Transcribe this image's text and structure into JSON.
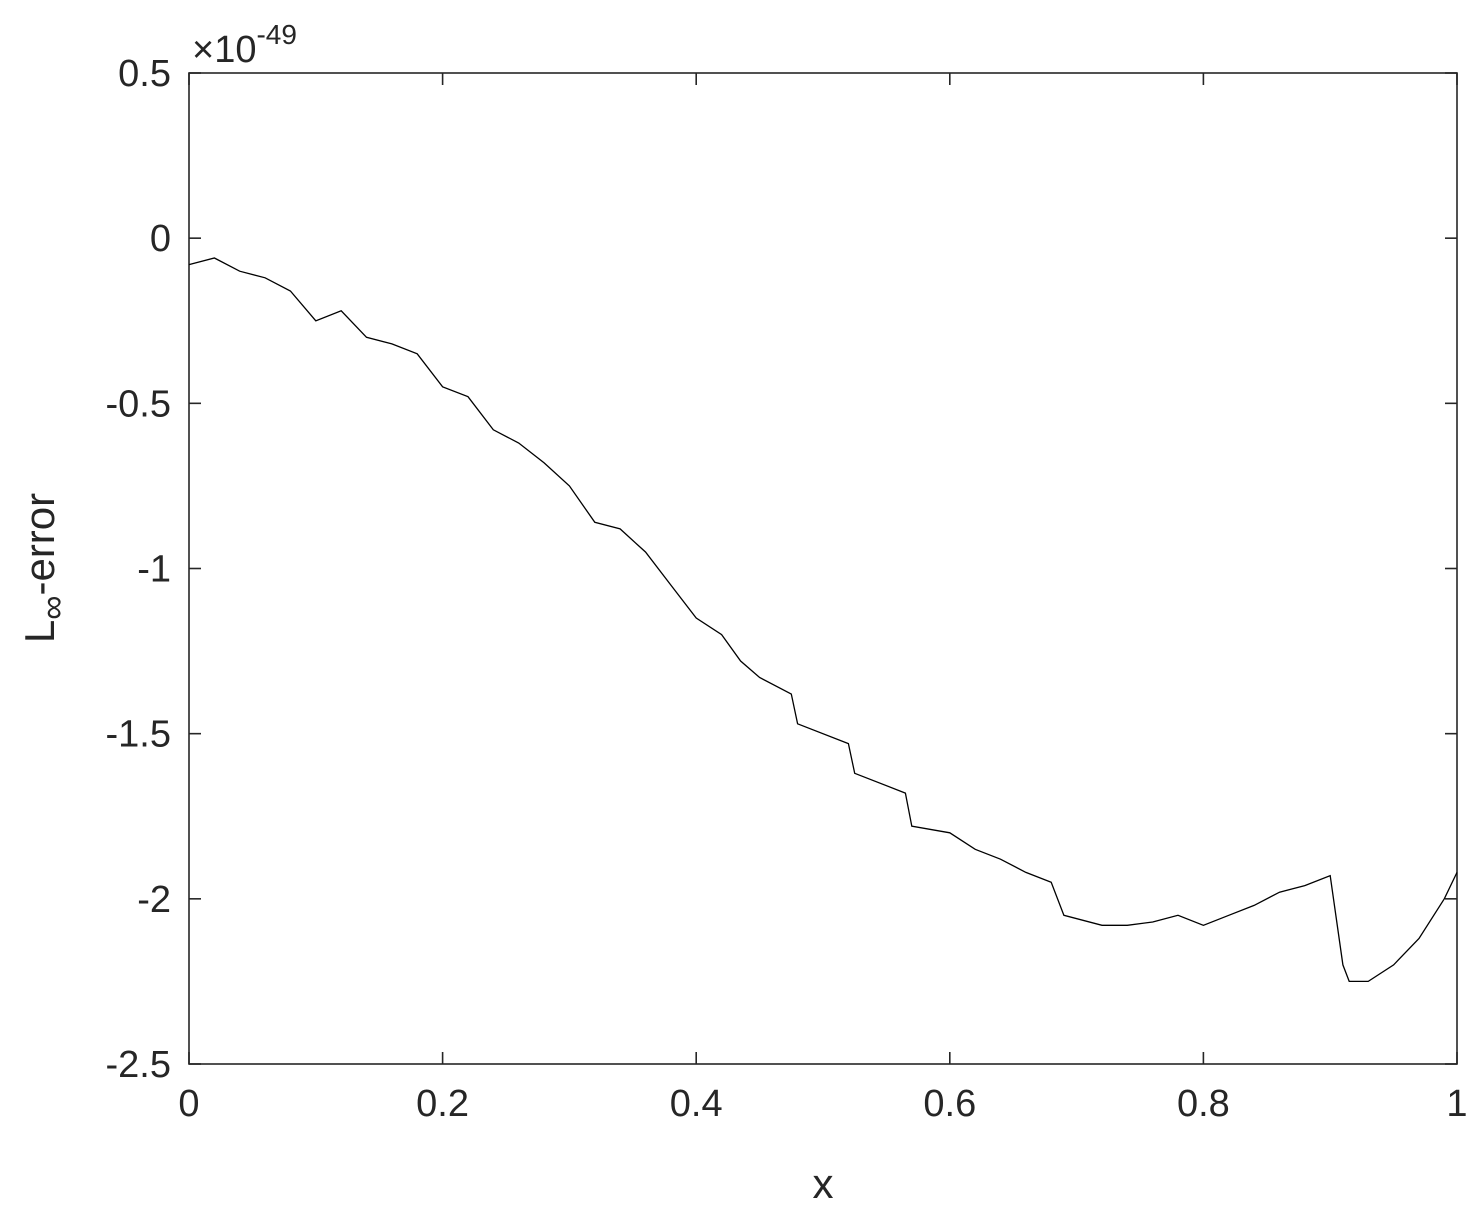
{
  "chart_data": {
    "type": "line",
    "title": "",
    "xlabel": "x",
    "ylabel_main": "L",
    "ylabel_sub": "∞",
    "ylabel_suffix": "-error",
    "exponent_label": "×10",
    "exponent_power": "-49",
    "xlim": [
      0,
      1
    ],
    "ylim": [
      -2.5,
      0.5
    ],
    "x_ticks": [
      0,
      0.2,
      0.4,
      0.6,
      0.8,
      1
    ],
    "x_tick_labels": [
      "0",
      "0.2",
      "0.4",
      "0.6",
      "0.8",
      "1"
    ],
    "y_ticks": [
      0.5,
      0,
      -0.5,
      -1,
      -1.5,
      -2,
      -2.5
    ],
    "y_tick_labels": [
      "0.5",
      "0",
      "-0.5",
      "-1",
      "-1.5",
      "-2",
      "-2.5"
    ],
    "grid": false,
    "series": [
      {
        "color": "#000000",
        "x": [
          0,
          0.02,
          0.04,
          0.06,
          0.08,
          0.1,
          0.12,
          0.14,
          0.16,
          0.18,
          0.2,
          0.22,
          0.24,
          0.26,
          0.28,
          0.3,
          0.32,
          0.34,
          0.36,
          0.38,
          0.4,
          0.42,
          0.435,
          0.45,
          0.475,
          0.48,
          0.52,
          0.525,
          0.565,
          0.57,
          0.6,
          0.62,
          0.64,
          0.66,
          0.68,
          0.69,
          0.72,
          0.74,
          0.76,
          0.78,
          0.8,
          0.82,
          0.84,
          0.86,
          0.88,
          0.9,
          0.91,
          0.915,
          0.93,
          0.95,
          0.97,
          0.99,
          1.0
        ],
        "y": [
          -0.08,
          -0.06,
          -0.1,
          -0.12,
          -0.16,
          -0.25,
          -0.22,
          -0.3,
          -0.32,
          -0.35,
          -0.45,
          -0.48,
          -0.58,
          -0.62,
          -0.68,
          -0.75,
          -0.86,
          -0.88,
          -0.95,
          -1.05,
          -1.15,
          -1.2,
          -1.28,
          -1.33,
          -1.38,
          -1.47,
          -1.53,
          -1.62,
          -1.68,
          -1.78,
          -1.8,
          -1.85,
          -1.88,
          -1.92,
          -1.95,
          -2.05,
          -2.08,
          -2.08,
          -2.07,
          -2.05,
          -2.08,
          -2.05,
          -2.02,
          -1.98,
          -1.96,
          -1.93,
          -2.2,
          -2.25,
          -2.25,
          -2.2,
          -2.12,
          -2.0,
          -1.92
        ]
      }
    ]
  }
}
